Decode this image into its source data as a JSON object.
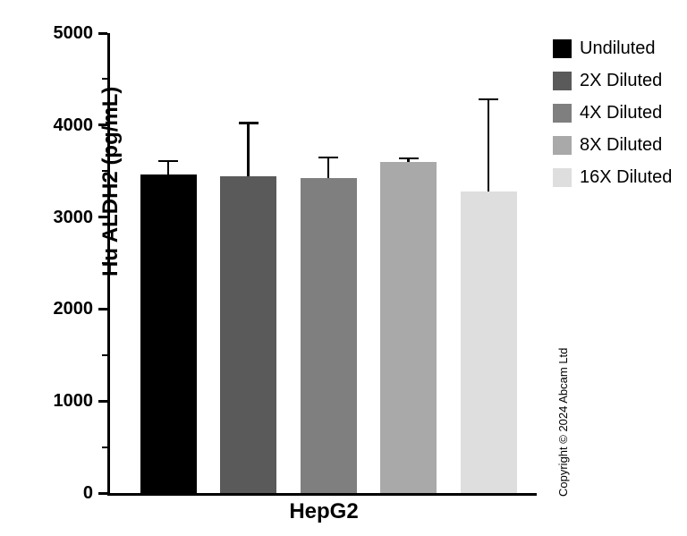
{
  "chart_data": {
    "type": "bar",
    "title": "",
    "xlabel": "HepG2",
    "ylabel": "Hu ALDH2 (pg/mL)",
    "ylim": [
      0,
      5000
    ],
    "yticks": [
      0,
      1000,
      2000,
      3000,
      4000,
      5000
    ],
    "minor_tick_interval": 500,
    "grid": false,
    "legend_position": "top-right",
    "categories": [
      "HepG2"
    ],
    "series": [
      {
        "name": "Undiluted",
        "color": "#000000",
        "value": 3460,
        "error_top": 3610
      },
      {
        "name": "2X Diluted",
        "color": "#5a5a5a",
        "value": 3440,
        "error_top": 4020
      },
      {
        "name": "4X Diluted",
        "color": "#7f7f7f",
        "value": 3420,
        "error_top": 3650
      },
      {
        "name": "8X Diluted",
        "color": "#a9a9a9",
        "value": 3600,
        "error_top": 3640
      },
      {
        "name": "16X Diluted",
        "color": "#dedede",
        "value": 3280,
        "error_top": 4280
      }
    ]
  },
  "annotations": {
    "copyright": "Copyright © 2024 Abcam Ltd"
  }
}
